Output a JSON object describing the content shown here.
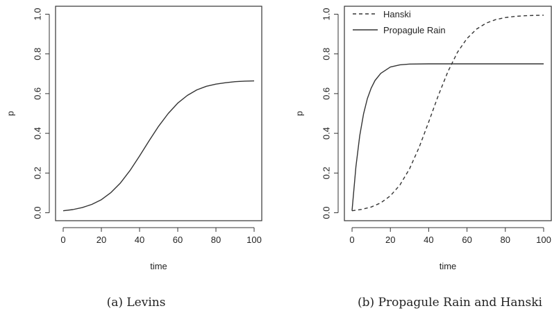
{
  "chart_data": [
    {
      "type": "line",
      "caption": "(a) Levins",
      "title": "",
      "xlabel": "time",
      "ylabel": "p",
      "xlim": [
        0,
        100
      ],
      "ylim": [
        0,
        1
      ],
      "xticks": [
        0,
        20,
        40,
        60,
        80,
        100
      ],
      "yticks": [
        0.0,
        0.2,
        0.4,
        0.6,
        0.8,
        1.0
      ],
      "ytick_labels": [
        "0.0",
        "0.2",
        "0.4",
        "0.6",
        "0.8",
        "1.0"
      ],
      "legend": null,
      "series": [
        {
          "style": "solid",
          "x": [
            0,
            5,
            10,
            15,
            20,
            25,
            30,
            35,
            40,
            45,
            50,
            55,
            60,
            65,
            70,
            75,
            80,
            85,
            90,
            95,
            100
          ],
          "y": [
            0.01,
            0.016,
            0.026,
            0.042,
            0.066,
            0.102,
            0.15,
            0.213,
            0.286,
            0.363,
            0.436,
            0.5,
            0.552,
            0.591,
            0.619,
            0.637,
            0.648,
            0.655,
            0.66,
            0.663,
            0.664
          ]
        }
      ]
    },
    {
      "type": "line",
      "caption": "(b) Propagule Rain and Hanski",
      "title": "",
      "xlabel": "time",
      "ylabel": "p",
      "xlim": [
        0,
        100
      ],
      "ylim": [
        0,
        1
      ],
      "xticks": [
        0,
        20,
        40,
        60,
        80,
        100
      ],
      "yticks": [
        0.0,
        0.2,
        0.4,
        0.6,
        0.8,
        1.0
      ],
      "ytick_labels": [
        "0.0",
        "0.2",
        "0.4",
        "0.6",
        "0.8",
        "1.0"
      ],
      "legend": "top-left",
      "series": [
        {
          "name": "Hanski",
          "style": "dashed",
          "x": [
            0,
            5,
            10,
            15,
            20,
            25,
            30,
            35,
            40,
            45,
            50,
            55,
            60,
            65,
            70,
            75,
            80,
            85,
            90,
            95,
            100
          ],
          "y": [
            0.01,
            0.017,
            0.029,
            0.05,
            0.085,
            0.14,
            0.221,
            0.329,
            0.457,
            0.59,
            0.71,
            0.808,
            0.878,
            0.925,
            0.955,
            0.973,
            0.983,
            0.989,
            0.992,
            0.994,
            0.995
          ]
        },
        {
          "name": "Propagule Rain",
          "style": "solid",
          "x": [
            0,
            2,
            4,
            6,
            8,
            10,
            12,
            15,
            20,
            25,
            30,
            40,
            50,
            60,
            70,
            80,
            90,
            100
          ],
          "y": [
            0.01,
            0.232,
            0.388,
            0.498,
            0.575,
            0.628,
            0.666,
            0.702,
            0.734,
            0.745,
            0.749,
            0.75,
            0.75,
            0.75,
            0.75,
            0.75,
            0.75,
            0.75
          ]
        }
      ]
    }
  ]
}
